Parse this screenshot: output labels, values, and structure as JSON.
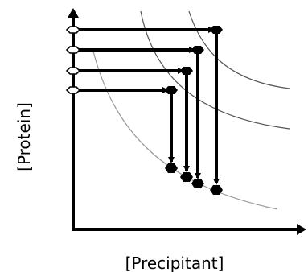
{
  "axes": {
    "xlabel": "[Precipitant]",
    "ylabel": "[Protein]"
  },
  "colors": {
    "arrows": "#000000",
    "curve_outer": "#555555",
    "curve_inner": "#999999",
    "open_marker_fill": "#ffffff"
  },
  "paths": [
    {
      "start_protein": 4,
      "end_precipitant": 4,
      "final_protein": 1
    },
    {
      "start_protein": 3,
      "end_precipitant": 3,
      "final_protein": 1.5
    },
    {
      "start_protein": 2,
      "end_precipitant": 2,
      "final_protein": 2
    },
    {
      "start_protein": 1,
      "end_precipitant": 1,
      "final_protein": 2.5
    }
  ]
}
